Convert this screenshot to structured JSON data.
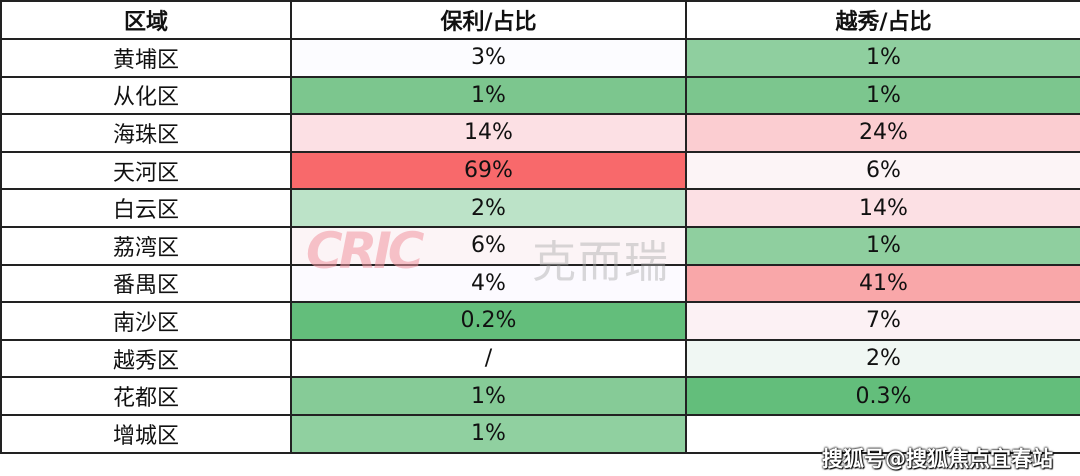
{
  "headers": [
    "区域",
    "保利/占比",
    "越秀/占比"
  ],
  "rows": [
    {
      "region": "黄埔区",
      "poly": "3%",
      "yuexiu": "1%",
      "poly_color": "#fcfcff",
      "yuexiu_color": "#8fcf9f"
    },
    {
      "region": "从化区",
      "poly": "1%",
      "yuexiu": "1%",
      "poly_color": "#7cc68e",
      "yuexiu_color": "#7cc68e"
    },
    {
      "region": "海珠区",
      "poly": "14%",
      "yuexiu": "24%",
      "poly_color": "#fce0e4",
      "yuexiu_color": "#fbcdd1"
    },
    {
      "region": "天河区",
      "poly": "69%",
      "yuexiu": "6%",
      "poly_color": "#f8696b",
      "yuexiu_color": "#fcf4f6"
    },
    {
      "region": "白云区",
      "poly": "2%",
      "yuexiu": "14%",
      "poly_color": "#bce3c8",
      "yuexiu_color": "#fce0e4"
    },
    {
      "region": "荔湾区",
      "poly": "6%",
      "yuexiu": "1%",
      "poly_color": "#fcf4f6",
      "yuexiu_color": "#8fcf9f"
    },
    {
      "region": "番禺区",
      "poly": "4%",
      "yuexiu": "41%",
      "poly_color": "#fcfaff",
      "yuexiu_color": "#f9a7a9"
    },
    {
      "region": "南沙区",
      "poly": "0.2%",
      "yuexiu": "7%",
      "poly_color": "#63be7b",
      "yuexiu_color": "#fcf1f4"
    },
    {
      "region": "越秀区",
      "poly": "/",
      "yuexiu": "2%",
      "poly_color": "#ffffff",
      "yuexiu_color": "#f0f7f3"
    },
    {
      "region": "花都区",
      "poly": "1%",
      "yuexiu": "0.3%",
      "poly_color": "#86cb97",
      "yuexiu_color": "#63be7b"
    },
    {
      "region": "增城区",
      "poly": "1%",
      "yuexiu": "",
      "poly_color": "#90d0a0",
      "yuexiu_color": "#ffffff"
    }
  ],
  "watermark": {
    "latin": "CRIC",
    "cn": "克而瑞"
  },
  "source_watermark": "搜狐号@搜狐焦点宜春站"
}
